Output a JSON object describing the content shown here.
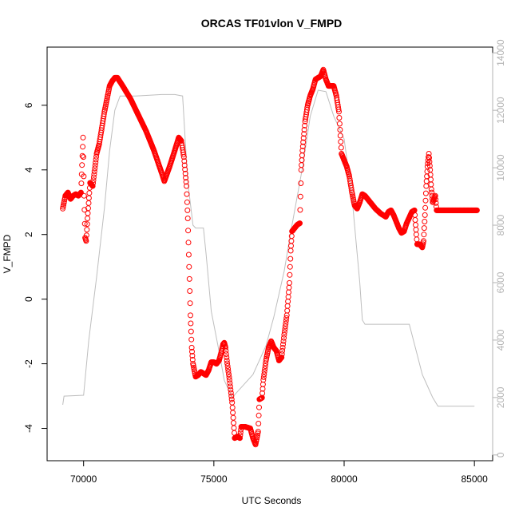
{
  "chart_data": {
    "type": "scatter",
    "title": "ORCAS TF01vlon V_FMPD",
    "xlabel": "UTC Seconds",
    "ylabel": "V_FMPD",
    "xlim": [
      68600,
      85700
    ],
    "ylim": [
      -5,
      7.8
    ],
    "y2lim": [
      -200,
      14200
    ],
    "x_ticks": [
      70000,
      75000,
      80000,
      85000
    ],
    "y_ticks": [
      -4,
      -2,
      0,
      2,
      4,
      6
    ],
    "y2_ticks": [
      0,
      2000,
      4000,
      6000,
      8000,
      10000,
      12000,
      14000
    ],
    "colors": {
      "points": "#ff0000",
      "altitude": "#bebebe"
    },
    "series": [
      {
        "marker": "open-circle",
        "points": [
          [
            69200,
            2.8
          ],
          [
            69300,
            3.2
          ],
          [
            69400,
            3.3
          ],
          [
            69500,
            3.1
          ],
          [
            69600,
            3.2
          ],
          [
            69700,
            3.25
          ],
          [
            69800,
            3.2
          ],
          [
            69900,
            3.3
          ],
          [
            69980,
            5.0
          ],
          [
            70020,
            3.2
          ],
          [
            70060,
            1.9
          ],
          [
            70100,
            1.8
          ],
          [
            70150,
            2.5
          ],
          [
            70250,
            3.6
          ],
          [
            70350,
            3.5
          ],
          [
            70500,
            4.5
          ],
          [
            70600,
            4.8
          ],
          [
            70700,
            5.3
          ],
          [
            70800,
            5.8
          ],
          [
            70900,
            6.2
          ],
          [
            71000,
            6.6
          ],
          [
            71100,
            6.75
          ],
          [
            71200,
            6.85
          ],
          [
            71300,
            6.85
          ],
          [
            71500,
            6.6
          ],
          [
            71800,
            6.2
          ],
          [
            72100,
            5.7
          ],
          [
            72400,
            5.2
          ],
          [
            72700,
            4.6
          ],
          [
            73000,
            3.9
          ],
          [
            73100,
            3.65
          ],
          [
            73300,
            4.1
          ],
          [
            73500,
            4.6
          ],
          [
            73650,
            5.0
          ],
          [
            73750,
            4.9
          ],
          [
            73850,
            4.4
          ],
          [
            73950,
            3.5
          ],
          [
            74000,
            2.5
          ],
          [
            74050,
            1.0
          ],
          [
            74100,
            -0.5
          ],
          [
            74150,
            -1.5
          ],
          [
            74200,
            -2.0
          ],
          [
            74300,
            -2.4
          ],
          [
            74400,
            -2.35
          ],
          [
            74500,
            -2.25
          ],
          [
            74600,
            -2.3
          ],
          [
            74700,
            -2.35
          ],
          [
            74800,
            -2.2
          ],
          [
            74900,
            -1.95
          ],
          [
            75000,
            -1.95
          ],
          [
            75100,
            -2.0
          ],
          [
            75200,
            -1.9
          ],
          [
            75300,
            -1.6
          ],
          [
            75350,
            -1.4
          ],
          [
            75400,
            -1.35
          ],
          [
            75450,
            -1.5
          ],
          [
            75500,
            -1.9
          ],
          [
            75600,
            -2.5
          ],
          [
            75700,
            -3.2
          ],
          [
            75800,
            -4.3
          ],
          [
            75900,
            -4.25
          ],
          [
            76000,
            -4.3
          ],
          [
            76050,
            -3.95
          ],
          [
            76200,
            -3.95
          ],
          [
            76400,
            -4.0
          ],
          [
            76500,
            -4.3
          ],
          [
            76600,
            -4.5
          ],
          [
            76700,
            -4.1
          ],
          [
            76750,
            -3.1
          ],
          [
            76850,
            -3.05
          ],
          [
            76900,
            -2.5
          ],
          [
            77000,
            -1.9
          ],
          [
            77100,
            -1.5
          ],
          [
            77200,
            -1.3
          ],
          [
            77300,
            -1.5
          ],
          [
            77400,
            -1.6
          ],
          [
            77500,
            -1.9
          ],
          [
            77600,
            -1.8
          ],
          [
            77700,
            -1.1
          ],
          [
            77800,
            -0.5
          ],
          [
            77900,
            0.5
          ],
          [
            77950,
            1.5
          ],
          [
            78000,
            2.1
          ],
          [
            78100,
            2.2
          ],
          [
            78200,
            2.3
          ],
          [
            78300,
            2.35
          ],
          [
            78350,
            4.0
          ],
          [
            78400,
            4.6
          ],
          [
            78500,
            5.5
          ],
          [
            78600,
            6.0
          ],
          [
            78700,
            6.3
          ],
          [
            78800,
            6.5
          ],
          [
            78900,
            6.8
          ],
          [
            79000,
            6.85
          ],
          [
            79100,
            6.9
          ],
          [
            79200,
            7.1
          ],
          [
            79300,
            6.8
          ],
          [
            79400,
            6.6
          ],
          [
            79500,
            6.6
          ],
          [
            79600,
            6.6
          ],
          [
            79700,
            6.3
          ],
          [
            79800,
            5.8
          ],
          [
            79900,
            4.5
          ],
          [
            80000,
            4.3
          ],
          [
            80100,
            4.1
          ],
          [
            80200,
            3.8
          ],
          [
            80300,
            3.3
          ],
          [
            80400,
            2.9
          ],
          [
            80500,
            2.8
          ],
          [
            80600,
            3.0
          ],
          [
            80700,
            3.25
          ],
          [
            80800,
            3.2
          ],
          [
            81000,
            3.0
          ],
          [
            81200,
            2.8
          ],
          [
            81400,
            2.65
          ],
          [
            81600,
            2.55
          ],
          [
            81700,
            2.7
          ],
          [
            81800,
            2.75
          ],
          [
            81900,
            2.6
          ],
          [
            82000,
            2.4
          ],
          [
            82100,
            2.2
          ],
          [
            82200,
            2.05
          ],
          [
            82300,
            2.1
          ],
          [
            82400,
            2.35
          ],
          [
            82600,
            2.7
          ],
          [
            82700,
            2.75
          ],
          [
            82800,
            1.7
          ],
          [
            82900,
            1.7
          ],
          [
            83000,
            1.6
          ],
          [
            83050,
            1.8
          ],
          [
            83100,
            2.6
          ],
          [
            83150,
            3.5
          ],
          [
            83200,
            4.1
          ],
          [
            83250,
            4.5
          ],
          [
            83300,
            4.0
          ],
          [
            83350,
            3.4
          ],
          [
            83400,
            3.0
          ],
          [
            83500,
            3.2
          ],
          [
            83550,
            2.75
          ],
          [
            84000,
            2.75
          ],
          [
            84500,
            2.75
          ],
          [
            85000,
            2.75
          ],
          [
            85100,
            2.75
          ]
        ]
      },
      {
        "axis": "right",
        "points": [
          [
            69200,
            1750
          ],
          [
            69250,
            2050
          ],
          [
            70000,
            2080
          ],
          [
            70200,
            4000
          ],
          [
            70500,
            6200
          ],
          [
            70800,
            8600
          ],
          [
            71000,
            10600
          ],
          [
            71200,
            12000
          ],
          [
            71400,
            12500
          ],
          [
            72000,
            12500
          ],
          [
            73000,
            12550
          ],
          [
            73500,
            12550
          ],
          [
            73800,
            12500
          ],
          [
            73900,
            11000
          ],
          [
            74000,
            9500
          ],
          [
            74200,
            8000
          ],
          [
            74300,
            7900
          ],
          [
            74600,
            7900
          ],
          [
            74700,
            7000
          ],
          [
            74900,
            5000
          ],
          [
            75200,
            3600
          ],
          [
            75400,
            2600
          ],
          [
            75700,
            2000
          ],
          [
            76000,
            2300
          ],
          [
            76500,
            2800
          ],
          [
            77000,
            3800
          ],
          [
            77300,
            4800
          ],
          [
            77700,
            6400
          ],
          [
            78000,
            8000
          ],
          [
            78400,
            10000
          ],
          [
            78700,
            11800
          ],
          [
            79000,
            12700
          ],
          [
            79300,
            12650
          ],
          [
            79600,
            11800
          ],
          [
            80000,
            11000
          ],
          [
            80300,
            9000
          ],
          [
            80600,
            6000
          ],
          [
            80700,
            4700
          ],
          [
            80800,
            4550
          ],
          [
            81000,
            4550
          ],
          [
            82500,
            4550
          ],
          [
            82800,
            3500
          ],
          [
            83000,
            2800
          ],
          [
            83200,
            2400
          ],
          [
            83400,
            2000
          ],
          [
            83600,
            1700
          ],
          [
            85000,
            1700
          ]
        ]
      }
    ]
  }
}
